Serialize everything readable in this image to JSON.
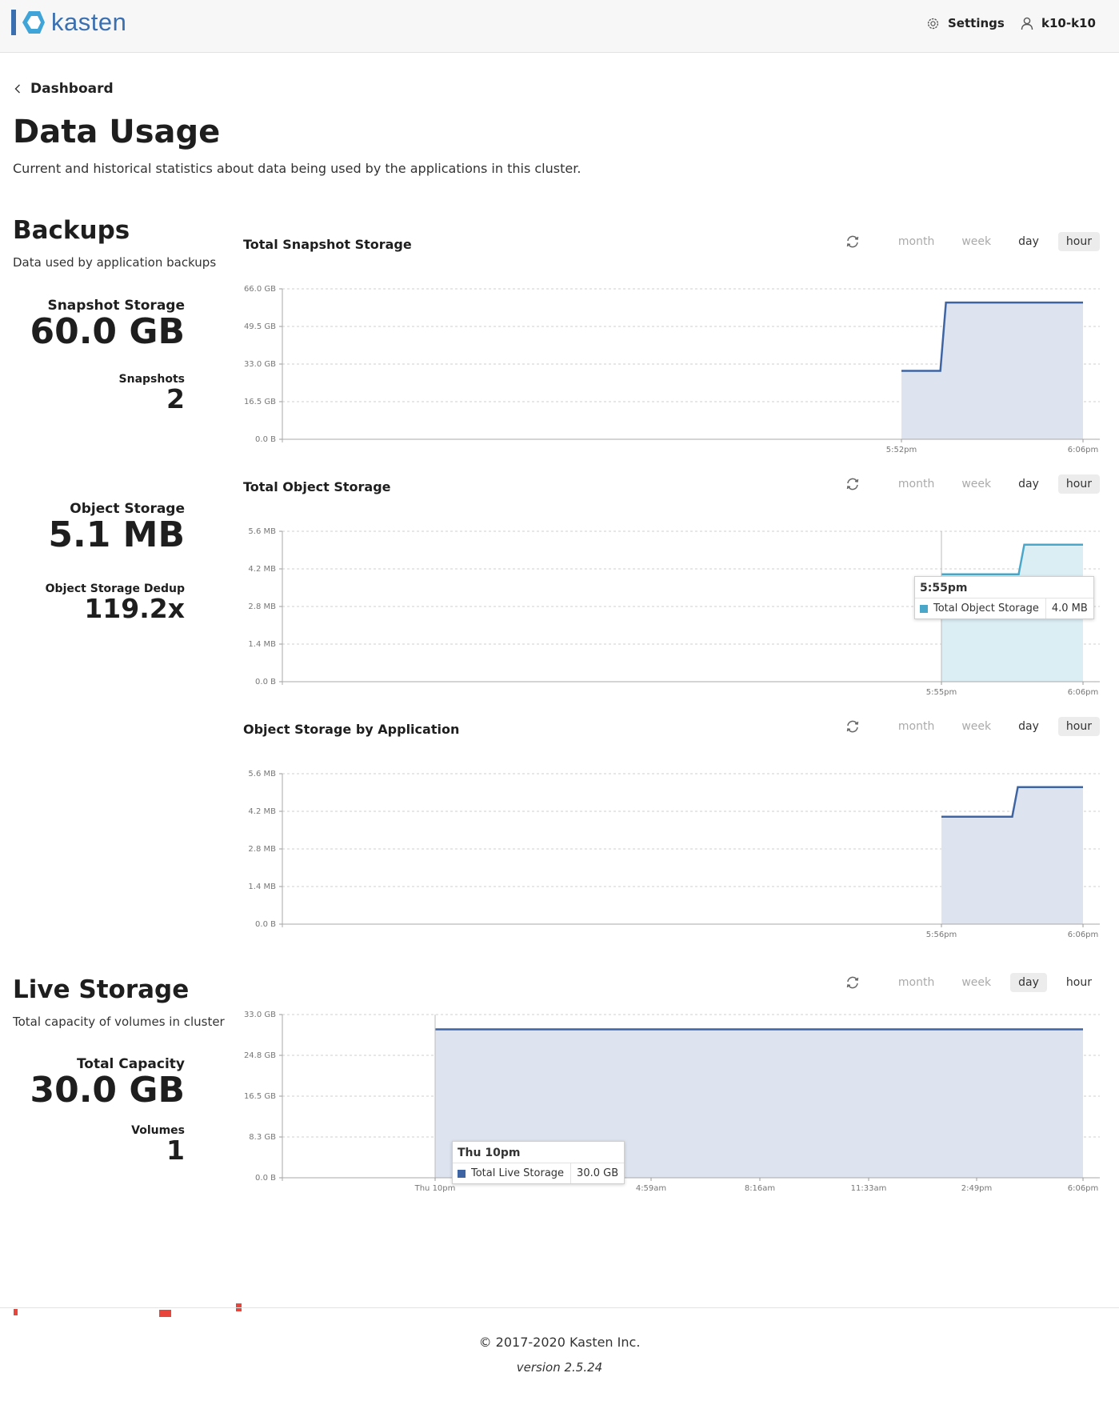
{
  "brand": {
    "name": "kasten"
  },
  "nav": {
    "settings_label": "Settings",
    "user_label": "k10-k10"
  },
  "breadcrumb": {
    "back_label": "Dashboard"
  },
  "page": {
    "title": "Data Usage",
    "subtitle": "Current and historical statistics about data being used by the applications in this cluster."
  },
  "backups": {
    "title": "Backups",
    "subtitle": "Data used by application backups",
    "snapshot_storage_label": "Snapshot Storage",
    "snapshot_storage_value": "60.0 GB",
    "snapshots_label": "Snapshots",
    "snapshots_value": "2",
    "object_storage_label": "Object Storage",
    "object_storage_value": "5.1 MB",
    "dedup_label": "Object Storage Dedup",
    "dedup_value": "119.2x"
  },
  "live": {
    "title": "Live Storage",
    "subtitle": "Total capacity of volumes in cluster",
    "capacity_label": "Total Capacity",
    "capacity_value": "30.0 GB",
    "volumes_label": "Volumes",
    "volumes_value": "1"
  },
  "range_options": [
    "month",
    "week",
    "day",
    "hour"
  ],
  "footer": {
    "copyright": "© 2017-2020 Kasten Inc.",
    "version": "version 2.5.24"
  },
  "colors": {
    "blue_line": "#3e64a3",
    "blue_fill": "#dde3ef",
    "teal_line": "#4aa7c9",
    "teal_fill": "#dbeef4",
    "accent": "#3a6fb0"
  },
  "chart_data": [
    {
      "type": "area",
      "title": "Total Snapshot Storage",
      "active_range": "hour",
      "y_ticks": [
        "66.0 GB",
        "49.5 GB",
        "33.0 GB",
        "16.5 GB",
        "0.0 B"
      ],
      "x_ticks": [
        "5:52pm",
        "6:06pm"
      ],
      "ylim": [
        0,
        66
      ],
      "unit": "GB",
      "series": [
        {
          "values": [
            {
              "t": "5:52pm",
              "y": 30
            },
            {
              "t": "5:55pm",
              "y": 30
            },
            {
              "t": "5:55pm",
              "y": 60
            },
            {
              "t": "6:06pm",
              "y": 60
            }
          ]
        }
      ],
      "grid": true
    },
    {
      "type": "area",
      "title": "Total Object Storage",
      "active_range": "hour",
      "y_ticks": [
        "5.6 MB",
        "4.2 MB",
        "2.8 MB",
        "1.4 MB",
        "0.0 B"
      ],
      "x_ticks": [
        "5:55pm",
        "6:06pm"
      ],
      "ylim": [
        0,
        5.6
      ],
      "unit": "MB",
      "series": [
        {
          "name": "Total Object Storage",
          "values": [
            {
              "t": "5:55pm",
              "y": 4.0
            },
            {
              "t": "6:01pm",
              "y": 4.0
            },
            {
              "t": "6:01pm",
              "y": 5.1
            },
            {
              "t": "6:06pm",
              "y": 5.1
            }
          ]
        }
      ],
      "tooltip": {
        "time": "5:55pm",
        "series": "Total Object Storage",
        "value": "4.0 MB"
      },
      "grid": true
    },
    {
      "type": "area",
      "title": "Object Storage by Application",
      "active_range": "hour",
      "y_ticks": [
        "5.6 MB",
        "4.2 MB",
        "2.8 MB",
        "1.4 MB",
        "0.0 B"
      ],
      "x_ticks": [
        "5:56pm",
        "6:06pm"
      ],
      "ylim": [
        0,
        5.6
      ],
      "unit": "MB",
      "series": [
        {
          "values": [
            {
              "t": "5:56pm",
              "y": 4.0
            },
            {
              "t": "6:01pm",
              "y": 4.0
            },
            {
              "t": "6:01pm",
              "y": 5.1
            },
            {
              "t": "6:06pm",
              "y": 5.1
            }
          ]
        }
      ],
      "grid": true
    },
    {
      "type": "area",
      "title": "",
      "active_range": "day",
      "y_ticks": [
        "33.0 GB",
        "24.8 GB",
        "16.5 GB",
        "8.3 GB",
        "0.0 B"
      ],
      "x_ticks": [
        "Thu 10pm",
        "4:59am",
        "8:16am",
        "11:33am",
        "2:49pm",
        "6:06pm"
      ],
      "ylim": [
        0,
        33
      ],
      "unit": "GB",
      "series": [
        {
          "name": "Total Live Storage",
          "values": [
            {
              "t": "Thu 10pm",
              "y": 30
            },
            {
              "t": "6:06pm",
              "y": 30
            }
          ]
        }
      ],
      "tooltip": {
        "time": "Thu 10pm",
        "series": "Total Live Storage",
        "value": "30.0 GB"
      },
      "grid": true
    }
  ]
}
